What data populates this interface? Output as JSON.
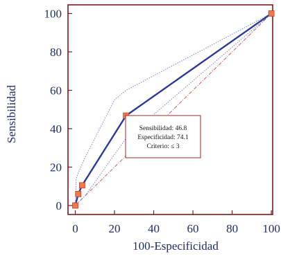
{
  "chart_data": {
    "type": "line",
    "title": "",
    "xlabel": "100-Especificidad",
    "ylabel": "Sensibilidad",
    "xlim": [
      -2,
      102
    ],
    "ylim": [
      -2,
      102
    ],
    "xticks": [
      0,
      20,
      40,
      60,
      80,
      100
    ],
    "yticks": [
      0,
      20,
      40,
      60,
      80,
      100
    ],
    "x_tick_labels": [
      "0",
      "20",
      "40",
      "60",
      "80",
      "100"
    ],
    "y_tick_labels": [
      "0",
      "20",
      "40",
      "60",
      "80",
      "100"
    ],
    "series": [
      {
        "role": "roc",
        "x": [
          0,
          1.5,
          3.5,
          25.9,
          100
        ],
        "y": [
          0,
          6,
          10.5,
          46.8,
          100
        ]
      },
      {
        "role": "ci_upper",
        "x": [
          0,
          0.5,
          1.5,
          5,
          20,
          25.9,
          100
        ],
        "y": [
          0,
          14,
          17,
          25,
          55,
          60,
          100
        ]
      },
      {
        "role": "ci_lower",
        "x": [
          0,
          2,
          5,
          25.9,
          100
        ],
        "y": [
          0,
          2,
          5,
          35,
          100
        ]
      },
      {
        "role": "reference",
        "x": [
          0,
          100
        ],
        "y": [
          0,
          100
        ]
      }
    ],
    "annotation": {
      "lines": [
        "Sensibilidad: 46.8",
        "Especificidad: 74.1",
        "Criterio: ≤ 3"
      ]
    },
    "grid": false,
    "colors": {
      "roc": "#2b3a9a",
      "ci": "#6a72c8",
      "reference": "#c84848",
      "marker_fill": "#f07850",
      "marker_stroke": "#b8421e",
      "frame": "#7a1a1a",
      "annotation_border": "#9b2a2a"
    }
  }
}
